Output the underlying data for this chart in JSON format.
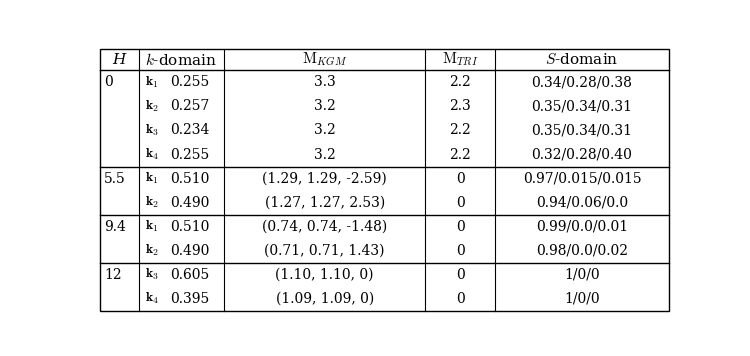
{
  "rows": [
    {
      "H": "0",
      "k": "1",
      "kval": "0.255",
      "MKGM": "3.3",
      "MTRI": "2.2",
      "S": "0.34/0.28/0.38"
    },
    {
      "H": "",
      "k": "2",
      "kval": "0.257",
      "MKGM": "3.2",
      "MTRI": "2.3",
      "S": "0.35/0.34/0.31"
    },
    {
      "H": "",
      "k": "3",
      "kval": "0.234",
      "MKGM": "3.2",
      "MTRI": "2.2",
      "S": "0.35/0.34/0.31"
    },
    {
      "H": "",
      "k": "4",
      "kval": "0.255",
      "MKGM": "3.2",
      "MTRI": "2.2",
      "S": "0.32/0.28/0.40"
    },
    {
      "H": "5.5",
      "k": "1",
      "kval": "0.510",
      "MKGM": "(1.29, 1.29, -2.59)",
      "MTRI": "0",
      "S": "0.97/0.015/0.015"
    },
    {
      "H": "",
      "k": "2",
      "kval": "0.490",
      "MKGM": "(1.27, 1.27, 2.53)",
      "MTRI": "0",
      "S": "0.94/0.06/0.0"
    },
    {
      "H": "9.4",
      "k": "1",
      "kval": "0.510",
      "MKGM": "(0.74, 0.74, -1.48)",
      "MTRI": "0",
      "S": "0.99/0.0/0.01"
    },
    {
      "H": "",
      "k": "2",
      "kval": "0.490",
      "MKGM": "(0.71, 0.71, 1.43)",
      "MTRI": "0",
      "S": "0.98/0.0/0.02"
    },
    {
      "H": "12",
      "k": "3",
      "kval": "0.605",
      "MKGM": "(1.10, 1.10, 0)",
      "MTRI": "0",
      "S": "1/0/0"
    },
    {
      "H": "",
      "k": "4",
      "kval": "0.395",
      "MKGM": "(1.09, 1.09, 0)",
      "MTRI": "0",
      "S": "1/0/0"
    }
  ],
  "k_index_for_row": [
    1,
    2,
    3,
    4,
    1,
    2,
    1,
    2,
    3,
    4
  ],
  "group_separators_after": [
    3,
    5,
    7
  ],
  "bg_color": "#ffffff",
  "line_color": "#000000",
  "font_size": 10,
  "header_font_size": 11
}
